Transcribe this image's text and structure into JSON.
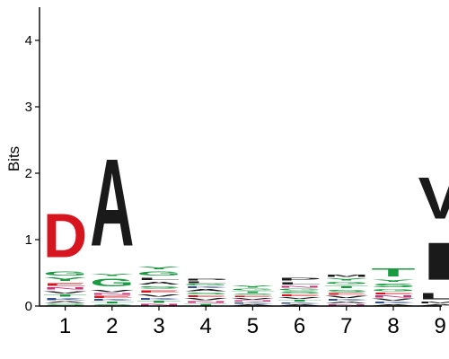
{
  "chart_data": {
    "type": "sequence-logo",
    "ylabel": "Bits",
    "ylim": [
      0,
      4.5
    ],
    "yticks": [
      "0",
      "1",
      "2",
      "3",
      "4"
    ],
    "xticks": [
      "1",
      "2",
      "3",
      "4",
      "5",
      "6",
      "7",
      "8",
      "9"
    ],
    "grid": false,
    "colors": {
      "D": "#d7151f",
      "E": "#d7151f",
      "A": "#1a1a1a",
      "V": "#1a1a1a",
      "I": "#1a1a1a",
      "L": "#1a1a1a",
      "M": "#1a1a1a",
      "F": "#1a1a1a",
      "P": "#1a1a1a",
      "W": "#1a1a1a",
      "G": "#1a9a41",
      "S": "#1a9a41",
      "T": "#1a9a41",
      "Y": "#1a9a41",
      "C": "#1a9a41",
      "N": "#c83279",
      "Q": "#c83279",
      "K": "#2f4f8f",
      "R": "#2f4f8f",
      "H": "#2f4f8f"
    },
    "positions": [
      {
        "pos": "1",
        "stack": [
          [
            "S",
            0.04
          ],
          [
            "A",
            0.04
          ],
          [
            "K",
            0.05
          ],
          [
            "T",
            0.05
          ],
          [
            "V",
            0.06
          ],
          [
            "N",
            0.05
          ],
          [
            "E",
            0.07
          ],
          [
            "Y",
            0.08
          ],
          [
            "G",
            0.09
          ],
          [
            "D",
            1.05
          ]
        ]
      },
      {
        "pos": "2",
        "stack": [
          [
            "S",
            0.03
          ],
          [
            "T",
            0.04
          ],
          [
            "K",
            0.04
          ],
          [
            "E",
            0.05
          ],
          [
            "N",
            0.04
          ],
          [
            "V",
            0.06
          ],
          [
            "G",
            0.18
          ],
          [
            "Y",
            0.06
          ],
          [
            "A",
            2.1
          ]
        ]
      },
      {
        "pos": "3",
        "stack": [
          [
            "N",
            0.04
          ],
          [
            "T",
            0.05
          ],
          [
            "K",
            0.04
          ],
          [
            "V",
            0.06
          ],
          [
            "E",
            0.06
          ],
          [
            "S",
            0.06
          ],
          [
            "A",
            0.07
          ],
          [
            "L",
            0.06
          ],
          [
            "G",
            0.1
          ],
          [
            "Y",
            0.07
          ]
        ]
      },
      {
        "pos": "4",
        "stack": [
          [
            "T",
            0.04
          ],
          [
            "N",
            0.04
          ],
          [
            "V",
            0.05
          ],
          [
            "E",
            0.04
          ],
          [
            "S",
            0.04
          ],
          [
            "A",
            0.05
          ],
          [
            "K",
            0.04
          ],
          [
            "G",
            0.04
          ],
          [
            "L",
            0.04
          ],
          [
            "P",
            0.04
          ]
        ]
      },
      {
        "pos": "5",
        "stack": [
          [
            "A",
            0.03
          ],
          [
            "K",
            0.03
          ],
          [
            "N",
            0.03
          ],
          [
            "V",
            0.04
          ],
          [
            "E",
            0.03
          ],
          [
            "S",
            0.03
          ],
          [
            "T",
            0.04
          ],
          [
            "G",
            0.04
          ],
          [
            "Y",
            0.05
          ]
        ]
      },
      {
        "pos": "6",
        "stack": [
          [
            "A",
            0.03
          ],
          [
            "K",
            0.03
          ],
          [
            "T",
            0.04
          ],
          [
            "V",
            0.04
          ],
          [
            "E",
            0.04
          ],
          [
            "S",
            0.05
          ],
          [
            "G",
            0.04
          ],
          [
            "N",
            0.04
          ],
          [
            "L",
            0.06
          ],
          [
            "P",
            0.07
          ]
        ]
      },
      {
        "pos": "7",
        "stack": [
          [
            "N",
            0.03
          ],
          [
            "A",
            0.04
          ],
          [
            "K",
            0.04
          ],
          [
            "V",
            0.05
          ],
          [
            "E",
            0.04
          ],
          [
            "S",
            0.06
          ],
          [
            "T",
            0.06
          ],
          [
            "G",
            0.05
          ],
          [
            "Y",
            0.06
          ],
          [
            "M",
            0.05
          ]
        ]
      },
      {
        "pos": "8",
        "stack": [
          [
            "A",
            0.03
          ],
          [
            "K",
            0.04
          ],
          [
            "V",
            0.05
          ],
          [
            "N",
            0.05
          ],
          [
            "E",
            0.04
          ],
          [
            "G",
            0.06
          ],
          [
            "S",
            0.08
          ],
          [
            "Y",
            0.06
          ],
          [
            "T",
            0.2
          ]
        ]
      },
      {
        "pos": "9",
        "stack": [
          [
            "A",
            0.03
          ],
          [
            "M",
            0.04
          ],
          [
            "L",
            0.15
          ],
          [
            "I",
            0.9
          ],
          [
            "V",
            1.0
          ]
        ]
      }
    ]
  }
}
